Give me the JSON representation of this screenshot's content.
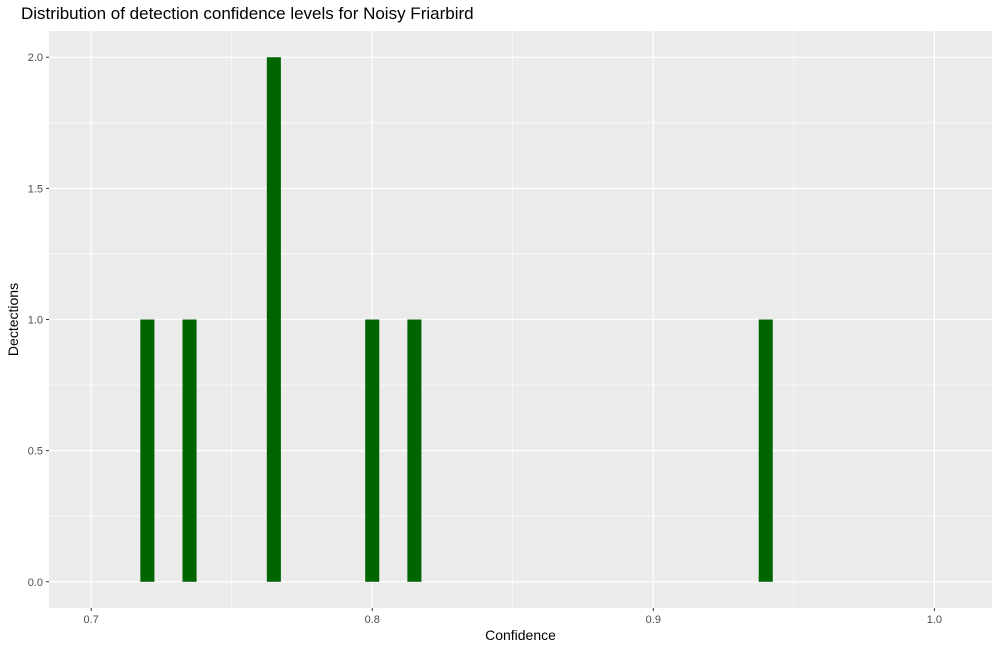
{
  "chart_data": {
    "type": "bar",
    "title": "Distribution of detection confidence levels for Noisy Friarbird",
    "xlabel": "Confidence",
    "ylabel": "Dectections",
    "xlim": [
      0.685,
      1.0205
    ],
    "ylim": [
      -0.1,
      2.1
    ],
    "x_ticks": [
      {
        "value": 0.7,
        "label": "0.7"
      },
      {
        "value": 0.8,
        "label": "0.8"
      },
      {
        "value": 0.9,
        "label": "0.9"
      },
      {
        "value": 1.0,
        "label": "1.0"
      }
    ],
    "y_ticks": [
      {
        "value": 0.0,
        "label": "0.0"
      },
      {
        "value": 0.5,
        "label": "0.5"
      },
      {
        "value": 1.0,
        "label": "1.0"
      },
      {
        "value": 1.5,
        "label": "1.5"
      },
      {
        "value": 2.0,
        "label": "2.0"
      }
    ],
    "bin_width": 0.005,
    "bars": [
      {
        "x": 0.72,
        "count": 1
      },
      {
        "x": 0.735,
        "count": 1
      },
      {
        "x": 0.765,
        "count": 2
      },
      {
        "x": 0.8,
        "count": 1
      },
      {
        "x": 0.815,
        "count": 1
      },
      {
        "x": 0.94,
        "count": 1
      }
    ],
    "grid": true,
    "colors": {
      "bar": "#006400",
      "panel": "#ebebeb",
      "grid": "#ffffff"
    }
  }
}
